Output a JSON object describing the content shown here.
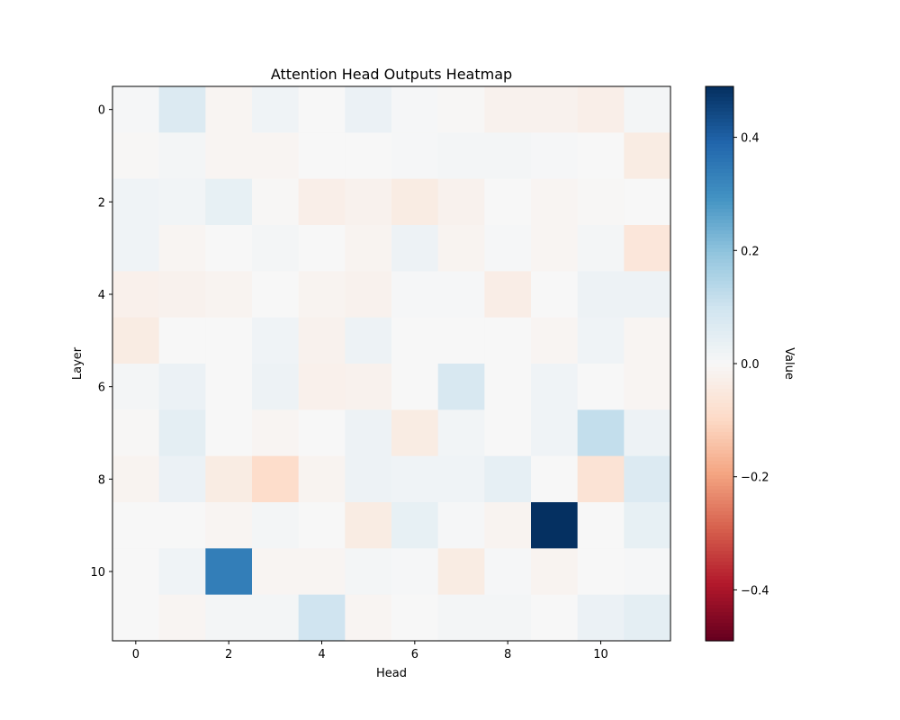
{
  "chart_data": {
    "type": "heatmap",
    "title": "Attention Head Outputs Heatmap",
    "xlabel": "Head",
    "ylabel": "Layer",
    "colorbar_label": "Value",
    "colormap": "RdBu",
    "vmin": -0.49,
    "vmax": 0.49,
    "rows": 12,
    "cols": 12,
    "x_ticks": [
      0,
      2,
      4,
      6,
      8,
      10
    ],
    "y_ticks": [
      0,
      2,
      4,
      6,
      8,
      10
    ],
    "colorbar_ticks": [
      {
        "value": 0.4,
        "label": "0.4"
      },
      {
        "value": 0.2,
        "label": "0.2"
      },
      {
        "value": 0.0,
        "label": "0.0"
      },
      {
        "value": -0.2,
        "label": "−0.2"
      },
      {
        "value": -0.4,
        "label": "−0.4"
      }
    ],
    "values": [
      [
        0.005,
        0.07,
        -0.01,
        0.02,
        0.0,
        0.03,
        0.005,
        -0.005,
        -0.02,
        -0.02,
        -0.03,
        0.01
      ],
      [
        -0.005,
        0.01,
        -0.01,
        -0.01,
        0.0,
        0.0,
        0.005,
        0.01,
        0.01,
        0.005,
        0.0,
        -0.04
      ],
      [
        0.02,
        0.015,
        0.04,
        -0.005,
        -0.03,
        -0.02,
        -0.04,
        -0.02,
        0.0,
        -0.01,
        -0.005,
        0.0
      ],
      [
        0.02,
        -0.01,
        0.0,
        0.01,
        0.0,
        -0.015,
        0.025,
        -0.015,
        0.005,
        -0.01,
        0.01,
        -0.06
      ],
      [
        -0.025,
        -0.02,
        -0.015,
        0.0,
        -0.015,
        -0.02,
        0.005,
        0.005,
        -0.035,
        0.0,
        0.025,
        0.025
      ],
      [
        -0.04,
        0.0,
        0.0,
        0.02,
        -0.02,
        0.025,
        0.0,
        0.0,
        0.0,
        -0.01,
        0.02,
        -0.01
      ],
      [
        0.01,
        0.03,
        0.0,
        0.025,
        -0.025,
        -0.02,
        0.0,
        0.08,
        0.0,
        0.02,
        0.0,
        -0.01
      ],
      [
        -0.005,
        0.05,
        0.0,
        -0.01,
        0.0,
        0.025,
        -0.04,
        0.015,
        0.0,
        0.02,
        0.12,
        0.025
      ],
      [
        -0.015,
        0.03,
        -0.04,
        -0.09,
        -0.015,
        0.025,
        0.02,
        0.02,
        0.045,
        0.0,
        -0.07,
        0.07
      ],
      [
        0.0,
        0.0,
        -0.01,
        0.01,
        0.0,
        -0.04,
        0.04,
        0.005,
        -0.015,
        0.49,
        0.0,
        0.04
      ],
      [
        0.0,
        0.02,
        0.34,
        -0.01,
        -0.01,
        0.01,
        0.005,
        -0.04,
        0.005,
        -0.015,
        0.0,
        0.005
      ],
      [
        0.0,
        -0.01,
        0.01,
        0.01,
        0.1,
        -0.01,
        0.0,
        0.01,
        0.01,
        0.0,
        0.03,
        0.05
      ]
    ]
  }
}
